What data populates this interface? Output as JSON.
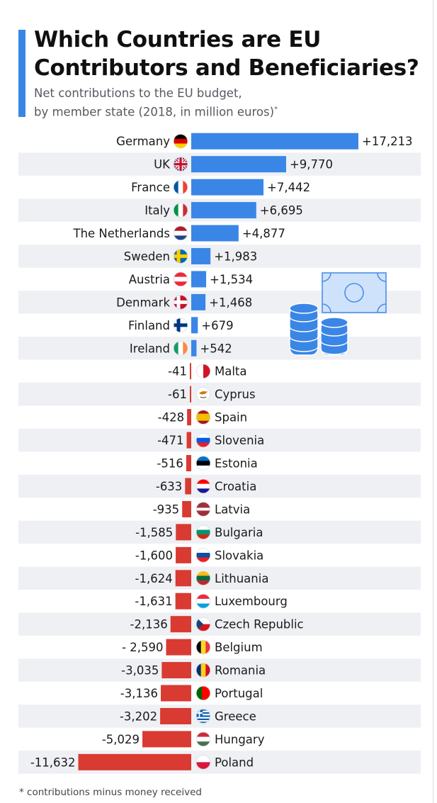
{
  "title": "Which Countries are EU Contributors and Beneficiaries?",
  "subtitle_line1": "Net contributions to the EU budget,",
  "subtitle_line2": "by member state (2018, in million euros)",
  "subtitle_mark": "*",
  "footnote": "* contributions minus money received",
  "colors": {
    "positive": "#3a86e6",
    "negative": "#d93a32",
    "stripe": "#eef0f4",
    "accent": "#3a86e6"
  },
  "chart_data": {
    "type": "bar",
    "orientation": "horizontal",
    "title": "Which Countries are EU Contributors and Beneficiaries?",
    "categories": [
      "Germany",
      "UK",
      "France",
      "Italy",
      "The Netherlands",
      "Sweden",
      "Austria",
      "Denmark",
      "Finland",
      "Ireland",
      "Malta",
      "Cyprus",
      "Spain",
      "Slovenia",
      "Estonia",
      "Croatia",
      "Latvia",
      "Bulgaria",
      "Slovakia",
      "Lithuania",
      "Luxembourg",
      "Czech Republic",
      "Belgium",
      "Romania",
      "Portugal",
      "Greece",
      "Hungary",
      "Poland"
    ],
    "values": [
      17213,
      9770,
      7442,
      6695,
      4877,
      1983,
      1534,
      1468,
      679,
      542,
      -41,
      -61,
      -428,
      -471,
      -516,
      -633,
      -935,
      -1585,
      -1600,
      -1624,
      -1631,
      -2136,
      -2590,
      -3035,
      -3136,
      -3202,
      -5029,
      -11632
    ],
    "labels": [
      "+17,213",
      "+9,770",
      "+7,442",
      "+6,695",
      "+4,877",
      "+1,983",
      "+1,534",
      "+1,468",
      "+679",
      "+542",
      "-41",
      "-61",
      "-428",
      "-471",
      "-516",
      "-633",
      "-935",
      "-1,585",
      "-1,600",
      "-1,624",
      "-1,631",
      "-2,136",
      "- 2,590",
      "-3,035",
      "-3,136",
      "-3,202",
      "-5,029",
      "-11,632"
    ],
    "xlabel": "",
    "ylabel": "",
    "grid": false,
    "legend": "none"
  }
}
